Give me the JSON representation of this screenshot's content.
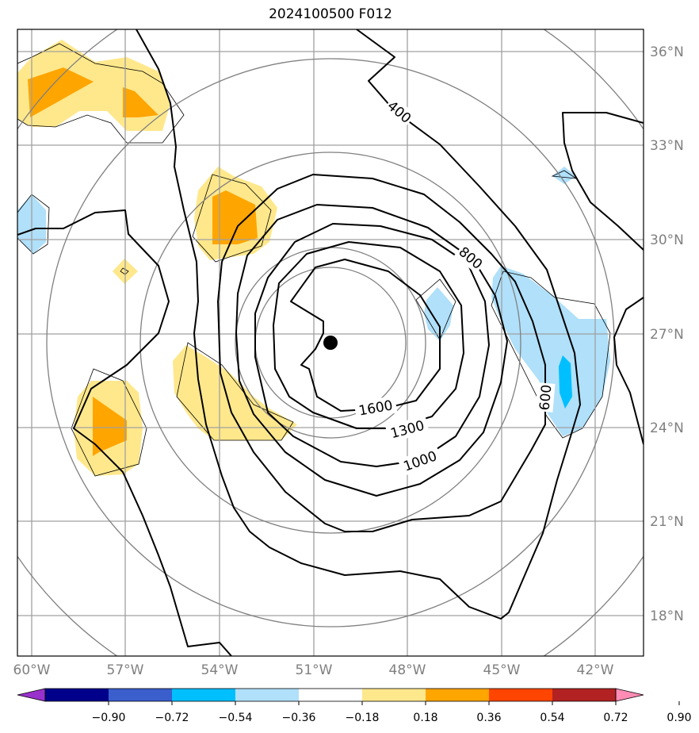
{
  "map": {
    "title": "2024100500 F012",
    "lat_labels": [
      "36°N",
      "33°N",
      "30°N",
      "27°N",
      "24°N",
      "21°N",
      "18°N"
    ],
    "lon_labels": [
      "60°W",
      "57°W",
      "54°W",
      "51°W",
      "48°W",
      "45°W",
      "42°W"
    ],
    "contour_labels": [
      "400",
      "800",
      "600",
      "1600",
      "1300",
      "1000"
    ],
    "center_marker": {
      "lat": 26.7,
      "lon": -50.4
    },
    "colorbar": {
      "tick_labels": [
        "−0.90",
        "−0.72",
        "−0.54",
        "−0.36",
        "−0.18",
        "0.18",
        "0.36",
        "0.54",
        "0.72",
        "0.90"
      ],
      "colors": [
        "#9932cc",
        "#00008b",
        "#3a5fcd",
        "#00bfff",
        "#b0e0fa",
        "#ffffff",
        "#ffe88c",
        "#ffa500",
        "#ff4500",
        "#b22222",
        "#ff8cb4"
      ]
    },
    "colors": {
      "contour": "#000000",
      "grid": "#a0a0a0",
      "range_rings": "#808080",
      "label": "#808080"
    }
  }
}
